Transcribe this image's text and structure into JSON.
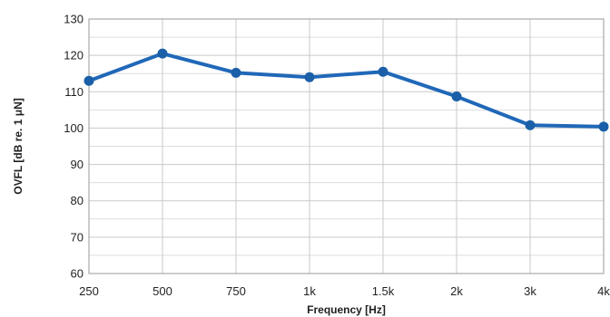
{
  "chart_data": {
    "type": "line",
    "title": "",
    "xlabel": "Frequency [Hz]",
    "ylabel": "OVFL [dB re. 1  μN]",
    "categories": [
      "250",
      "500",
      "750",
      "1k",
      "1.5k",
      "2k",
      "3k",
      "4k"
    ],
    "series": [
      {
        "values": [
          113,
          120.5,
          115.2,
          114,
          115.5,
          108.7,
          100.8,
          100.4
        ]
      }
    ],
    "ylim": [
      60,
      130
    ],
    "yticks": [
      60,
      70,
      80,
      90,
      100,
      110,
      120,
      130
    ],
    "minor_grid_step": 5,
    "grid": true,
    "legend": false,
    "colors": {
      "line": "#2068b8",
      "marker": "#1a5fa8"
    }
  }
}
